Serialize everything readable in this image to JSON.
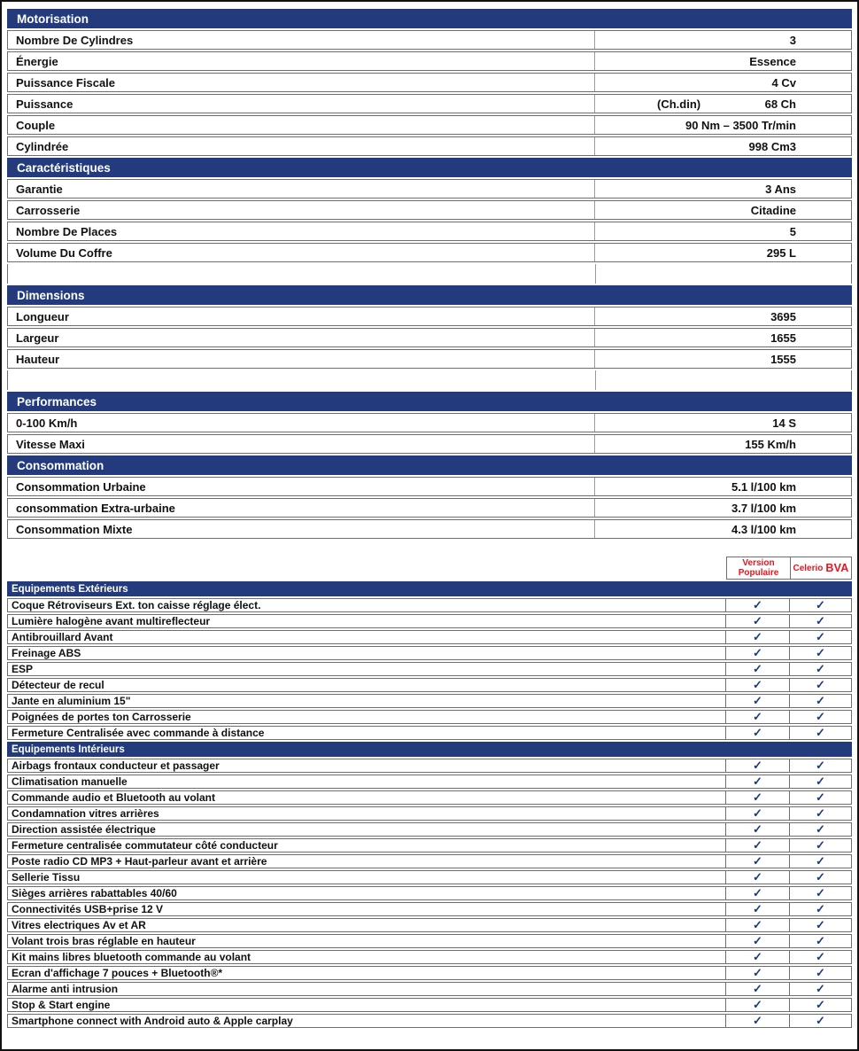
{
  "colors": {
    "navy": "#233b7d",
    "red": "#e8141e",
    "check_mark_color": "#1d3a7a"
  },
  "check_mark": "✓",
  "spec_blocks": [
    {
      "type": "section",
      "title": "Motorisation",
      "rows": [
        {
          "label": "Nombre De Cylindres",
          "value": "3"
        },
        {
          "label": "Énergie",
          "value": "Essence"
        },
        {
          "label": "Puissance Fiscale",
          "value": "4 Cv"
        },
        {
          "label": "Puissance",
          "note": "(Ch.din)",
          "value": "68 Ch"
        },
        {
          "label": "Couple",
          "value": "90 Nm – 3500 Tr/min"
        },
        {
          "label": "Cylindrée",
          "value": "998 Cm3"
        }
      ]
    },
    {
      "type": "section",
      "title": "Caractéristiques",
      "rows": [
        {
          "label": "Garantie",
          "value": "3 Ans"
        },
        {
          "label": "Carrosserie",
          "value": "Citadine"
        },
        {
          "label": "Nombre De Places",
          "value": "5"
        },
        {
          "label": "Volume Du Coffre",
          "value": "295 L"
        }
      ]
    },
    {
      "type": "spacer"
    },
    {
      "type": "section",
      "title": "Dimensions",
      "rows": [
        {
          "label": "Longueur",
          "value": "3695"
        },
        {
          "label": "Largeur",
          "value": "1655"
        },
        {
          "label": "Hauteur",
          "value": "1555"
        }
      ]
    },
    {
      "type": "spacer"
    },
    {
      "type": "section",
      "title": "Performances",
      "rows": [
        {
          "label": "0-100 Km/h",
          "value": "14 S"
        },
        {
          "label": "Vitesse Maxi",
          "value": "155 Km/h"
        }
      ]
    },
    {
      "type": "section",
      "title": "Consommation",
      "rows": [
        {
          "label": "Consommation Urbaine",
          "value": "5.1 l/100 km"
        },
        {
          "label": "consommation Extra-urbaine",
          "value": "3.7 l/100 km"
        },
        {
          "label": "Consommation Mixte",
          "value": "4.3 l/100 km"
        }
      ]
    }
  ],
  "equipment": {
    "header": {
      "col1_line1": "Version",
      "col1_line2": "Populaire",
      "col2_normal": "Celerio",
      "col2_strong": "BVA"
    },
    "sections": [
      {
        "title": "Equipements Extérieurs",
        "items": [
          {
            "label": "Coque Rétroviseurs Ext. ton caisse réglage élect.",
            "checks": [
              true,
              true
            ]
          },
          {
            "label": "Lumière halogène avant multireflecteur",
            "checks": [
              true,
              true
            ]
          },
          {
            "label": "Antibrouillard Avant",
            "checks": [
              true,
              true
            ]
          },
          {
            "label": "Freinage ABS",
            "checks": [
              true,
              true
            ]
          },
          {
            "label": "ESP",
            "checks": [
              true,
              true
            ]
          },
          {
            "label": "Détecteur de recul",
            "checks": [
              true,
              true
            ]
          },
          {
            "label": "Jante en aluminium 15\"",
            "checks": [
              true,
              true
            ]
          },
          {
            "label": "Poignées de portes ton Carrosserie",
            "checks": [
              true,
              true
            ]
          },
          {
            "label": "Fermeture Centralisée avec commande à distance",
            "checks": [
              true,
              true
            ]
          }
        ]
      },
      {
        "title": "Equipements Intérieurs",
        "items": [
          {
            "label": "Airbags frontaux conducteur et passager",
            "checks": [
              true,
              true
            ]
          },
          {
            "label": "Climatisation manuelle",
            "checks": [
              true,
              true
            ]
          },
          {
            "label": "Commande audio et Bluetooth au volant",
            "checks": [
              true,
              true
            ]
          },
          {
            "label": "Condamnation vitres arrières",
            "checks": [
              true,
              true
            ]
          },
          {
            "label": "Direction assistée électrique",
            "checks": [
              true,
              true
            ]
          },
          {
            "label": "Fermeture centralisée commutateur côté conducteur",
            "checks": [
              true,
              true
            ]
          },
          {
            "label": "Poste radio CD MP3 + Haut-parleur avant et arrière",
            "checks": [
              true,
              true
            ]
          },
          {
            "label": "Sellerie Tissu",
            "checks": [
              true,
              true
            ]
          },
          {
            "label": "Sièges arrières rabattables 40/60",
            "checks": [
              true,
              true
            ]
          },
          {
            "label": "Connectivités USB+prise 12 V",
            "checks": [
              true,
              true
            ]
          },
          {
            "label": "Vitres electriques Av et AR",
            "checks": [
              true,
              true
            ]
          },
          {
            "label": "Volant trois bras réglable en hauteur",
            "checks": [
              true,
              true
            ]
          },
          {
            "label": "Kit mains libres bluetooth commande au volant",
            "checks": [
              true,
              true
            ]
          },
          {
            "label": "Ecran d'affichage 7 pouces + Bluetooth®*",
            "checks": [
              true,
              true
            ]
          },
          {
            "label": "Alarme anti intrusion",
            "checks": [
              true,
              true
            ]
          },
          {
            "label": "Stop & Start engine",
            "checks": [
              true,
              true
            ]
          },
          {
            "label": "Smartphone connect with Android auto & Apple carplay",
            "checks": [
              true,
              true
            ]
          }
        ]
      }
    ]
  }
}
